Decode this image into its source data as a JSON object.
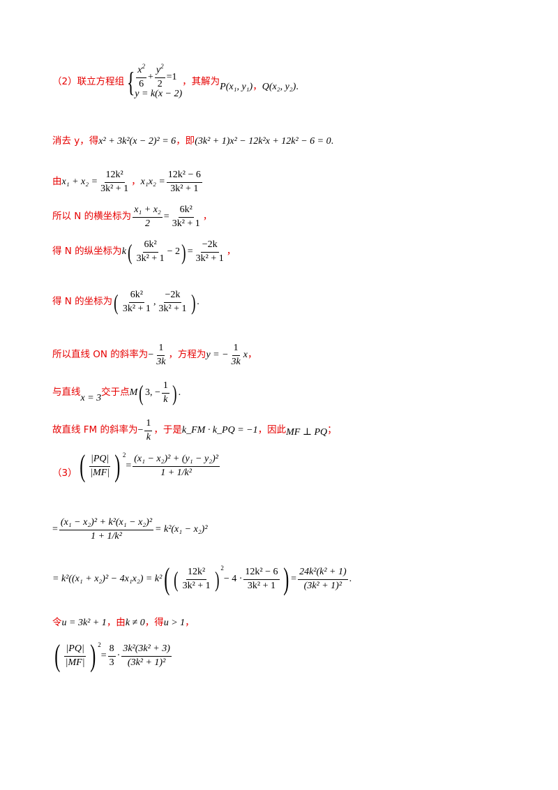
{
  "lines": {
    "l1_prefix": "（2）联立方程组",
    "l1_eq1_num1": "x",
    "l1_eq1_den1": "6",
    "l1_eq1_num2": "y",
    "l1_eq1_den2": "2",
    "l1_eq1_rhs": "=1",
    "l1_eq2": "y = k(x − 2)",
    "l1_mid": "，其解为",
    "l1_P": "P(x₁, y₁)",
    "l1_Q": "Q(x₂, y₂)",
    "l2_prefix": "消去 y，得",
    "l2_eq1": "x² + 3k²(x − 2)² = 6",
    "l2_mid": "，即",
    "l2_eq2": "(3k² + 1)x² − 12k²x + 12k² − 6 = 0",
    "l3_prefix": "由",
    "l3_sum": "x₁ + x₂ =",
    "l3_f1_num": "12k²",
    "l3_f1_den": "3k² + 1",
    "l3_prod": "x₁x₂ =",
    "l3_f2_num": "12k² − 6",
    "l3_f2_den": "3k² + 1",
    "l4_prefix": "所以 N 的横坐标为",
    "l4_f1_num": "x₁ + x₂",
    "l4_f1_den": "2",
    "l4_f2_num": "6k²",
    "l4_f2_den": "3k² + 1",
    "l5_prefix": "得 N 的纵坐标为",
    "l5_k": "k",
    "l5_f1_num": "6k²",
    "l5_f1_den": "3k² + 1",
    "l5_minus2": "− 2",
    "l5_f2_num": "−2k",
    "l5_f2_den": "3k² + 1",
    "l6_prefix": "得 N 的坐标为",
    "l6_f1_num": "6k²",
    "l6_f1_den": "3k² + 1",
    "l6_f2_num": "−2k",
    "l6_f2_den": "3k² + 1",
    "l7_prefix": "所以直线 ON 的斜率为",
    "l7_f_num": "1",
    "l7_f_den": "3k",
    "l7_mid": "，方程为",
    "l7_eq": "y = −",
    "l7_x": "x",
    "l8_prefix": "与直线",
    "l8_line": "x = 3",
    "l8_mid": "交于点",
    "l8_M": "M",
    "l8_three": "3, −",
    "l8_f_num": "1",
    "l8_f_den": "k",
    "l9_prefix": "故直线 FM 的斜率为",
    "l9_f_num": "1",
    "l9_f_den": "k",
    "l9_mid": "，于是",
    "l9_eq": "k_FM · k_PQ = −1",
    "l9_mid2": "，因此",
    "l9_perp": "MF ⊥ PQ",
    "l10_prefix": "（3）",
    "l10_ratio_num": "|PQ|",
    "l10_ratio_den": "|MF|",
    "l10_rhs_num": "(x₁ − x₂)² + (y₁ − y₂)²",
    "l10_rhs_den": "1 + 1/k²",
    "l11_num": "(x₁ − x₂)² + k²(x₁ − x₂)²",
    "l11_den": "1 + 1/k²",
    "l11_rhs": "= k²(x₁ − x₂)²",
    "l12_a": "= k²((x₁ + x₂)² − 4x₁x₂) = k²",
    "l12_f1_num": "12k²",
    "l12_f1_den": "3k² + 1",
    "l12_mid": "− 4 ·",
    "l12_f2_num": "12k² − 6",
    "l12_f2_den": "3k² + 1",
    "l12_f3_num": "24k²(k² + 1)",
    "l12_f3_den": "(3k² + 1)²",
    "l13_prefix": "令",
    "l13_eq1": "u = 3k² + 1",
    "l13_mid": "，由",
    "l13_eq2": "k ≠ 0",
    "l13_mid2": "，得",
    "l13_eq3": "u > 1",
    "l14_ratio_num": "|PQ|",
    "l14_ratio_den": "|MF|",
    "l14_f1_num": "8",
    "l14_f1_den": "3",
    "l14_f2_num": "3k²(3k² + 3)",
    "l14_f2_den": "(3k² + 1)²"
  }
}
